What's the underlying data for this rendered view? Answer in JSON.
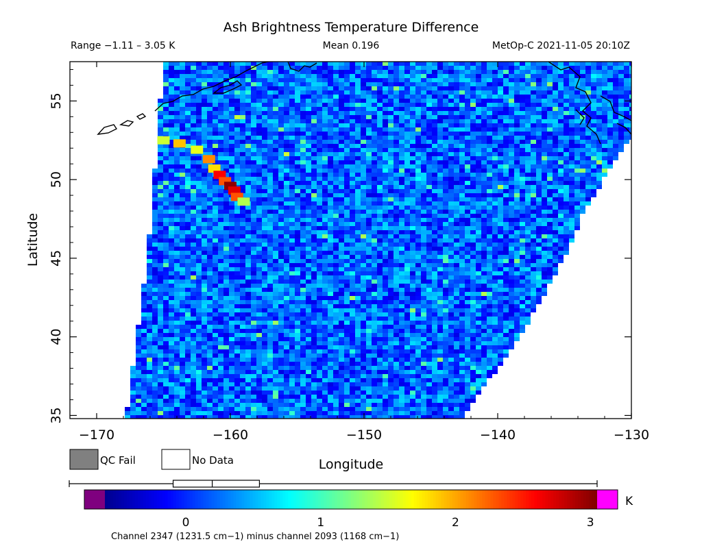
{
  "chart_data": {
    "type": "heatmap",
    "title": "Ash Brightness Temperature Difference",
    "header": {
      "range_text": "Range −1.11 – 3.05 K",
      "mean_text": "Mean 0.196",
      "source_text": "MetOp-C 2021-11-05 20:10Z"
    },
    "range": [
      -1.11,
      3.05
    ],
    "mean": 0.196,
    "xlabel": "Longitude",
    "ylabel": "Latitude",
    "xlim": [
      -172,
      -130
    ],
    "ylim": [
      34.8,
      57.5
    ],
    "xticks": [
      -170,
      -160,
      -150,
      -140,
      -130
    ],
    "xtick_labels": [
      "−170",
      "−160",
      "−150",
      "−140",
      "−130"
    ],
    "yticks": [
      35,
      40,
      45,
      50,
      55
    ],
    "ytick_labels": [
      "35",
      "40",
      "45",
      "50",
      "55"
    ],
    "swath": {
      "west_edge": [
        [
          -167.8,
          34.8
        ],
        [
          -166.2,
          45.0
        ],
        [
          -165.0,
          57.5
        ]
      ],
      "east_edge": [
        [
          -142.7,
          34.8
        ],
        [
          -138.3,
          40.0
        ],
        [
          -135.0,
          45.0
        ],
        [
          -133.5,
          48.0
        ],
        [
          -131.0,
          51.5
        ],
        [
          -129.5,
          53.0
        ]
      ]
    },
    "ash_plume": [
      {
        "lon": -165.0,
        "lat": 52.5,
        "value": 1.5
      },
      {
        "lon": -163.8,
        "lat": 52.3,
        "value": 1.9
      },
      {
        "lon": -162.5,
        "lat": 51.9,
        "value": 1.6
      },
      {
        "lon": -161.6,
        "lat": 51.3,
        "value": 2.1
      },
      {
        "lon": -161.2,
        "lat": 50.7,
        "value": 1.8
      },
      {
        "lon": -160.8,
        "lat": 50.3,
        "value": 2.6
      },
      {
        "lon": -160.4,
        "lat": 49.9,
        "value": 2.3
      },
      {
        "lon": -160.0,
        "lat": 49.6,
        "value": 3.0
      },
      {
        "lon": -159.7,
        "lat": 49.3,
        "value": 2.7
      },
      {
        "lon": -159.5,
        "lat": 48.9,
        "value": 2.3
      },
      {
        "lon": -159.0,
        "lat": 48.6,
        "value": 1.4
      }
    ],
    "colorbar": {
      "ticks": [
        0,
        1,
        2,
        3
      ],
      "tick_labels": [
        "0",
        "1",
        "2",
        "3"
      ],
      "unit": "K",
      "min": -0.6,
      "max": 3.05,
      "colors": [
        "#00008f",
        "#0000ff",
        "#0080ff",
        "#00ffff",
        "#80ff80",
        "#ffff00",
        "#ff8000",
        "#ff0000",
        "#800000"
      ],
      "below_color": "#7f007f",
      "above_color": "#ff00ff"
    },
    "legend": [
      {
        "label": "QC Fail",
        "color": "#808080"
      },
      {
        "label": "No Data",
        "color": "#ffffff"
      }
    ],
    "caption": "Channel 2347 (1231.5 cm−1) minus channel 2093 (1168 cm−1)"
  }
}
